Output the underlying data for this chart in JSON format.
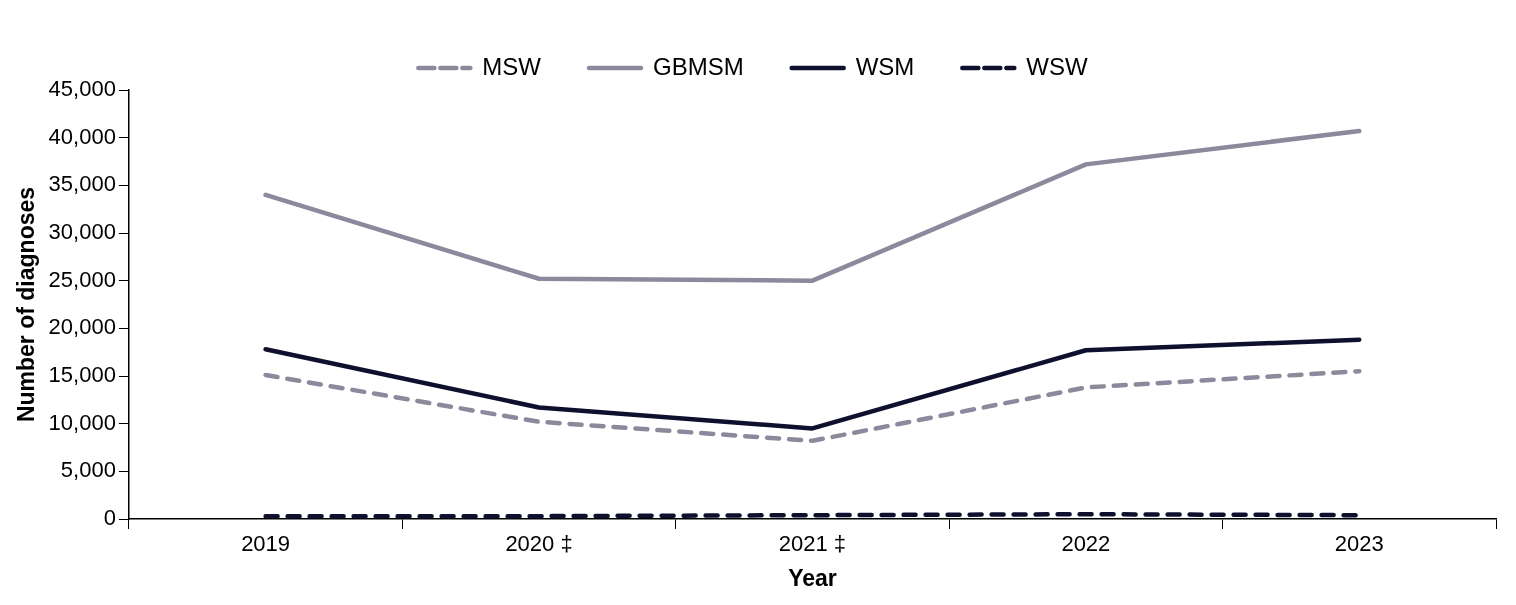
{
  "chart_data": {
    "type": "line",
    "xlabel": "Year",
    "ylabel": "Number of diagnoses",
    "categories": [
      "2019",
      "2020 ‡",
      "2021 ‡",
      "2022",
      "2023"
    ],
    "series": [
      {
        "name": "MSW",
        "color": "#8a8a9c",
        "line_style": "dashed",
        "values": [
          15100,
          10200,
          8200,
          13800,
          15500
        ]
      },
      {
        "name": "GBMSM",
        "color": "#8a8a9c",
        "line_style": "solid",
        "values": [
          34000,
          25200,
          25000,
          37200,
          40700
        ]
      },
      {
        "name": "WSM",
        "color": "#0f0f2e",
        "line_style": "solid",
        "values": [
          17800,
          11700,
          9500,
          17700,
          18800
        ]
      },
      {
        "name": "WSW",
        "color": "#0f0f2e",
        "line_style": "dashed",
        "values": [
          300,
          300,
          400,
          500,
          400
        ]
      }
    ],
    "ylim": [
      0,
      45000
    ],
    "yticks": [
      {
        "value": 0,
        "label": "0"
      },
      {
        "value": 5000,
        "label": "5,000"
      },
      {
        "value": 10000,
        "label": "10,000"
      },
      {
        "value": 15000,
        "label": "15,000"
      },
      {
        "value": 20000,
        "label": "20,000"
      },
      {
        "value": 25000,
        "label": "25,000"
      },
      {
        "value": 30000,
        "label": "30,000"
      },
      {
        "value": 35000,
        "label": "35,000"
      },
      {
        "value": 40000,
        "label": "40,000"
      },
      {
        "value": 45000,
        "label": "45,000"
      }
    ],
    "grid": false,
    "legend": "top",
    "marker": "none"
  }
}
